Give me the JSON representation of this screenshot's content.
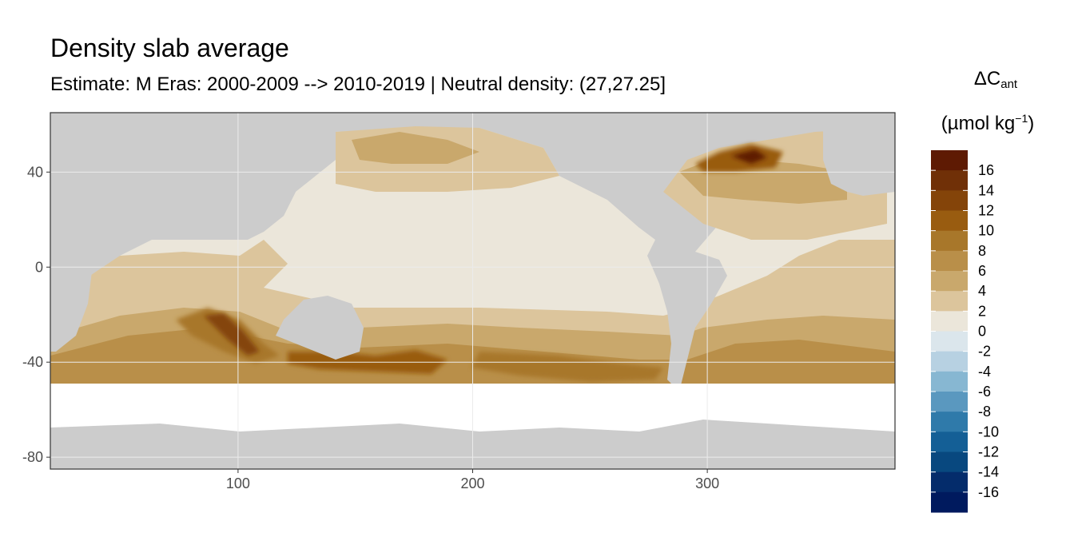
{
  "title": "Density slab average",
  "subtitle": "Estimate: M Eras: 2000-2009 --> 2010-2019 | Neutral density: (27,27.25]",
  "legend": {
    "title_line1": "ΔC",
    "title_line1_sub": "ant",
    "title_line2": "(µmol kg",
    "title_line2_sup": "−1",
    "title_line2_end": ")",
    "labels": [
      "16",
      "14",
      "12",
      "10",
      "8",
      "6",
      "4",
      "2",
      "0",
      "-2",
      "-4",
      "-6",
      "-8",
      "-10",
      "-12",
      "-14",
      "-16"
    ],
    "colors": [
      "#5e1a03",
      "#703007",
      "#844409",
      "#995c10",
      "#a8772a",
      "#b98f49",
      "#c9a86c",
      "#dcc59c",
      "#ebe6da",
      "#dbe6ec",
      "#b7d1e2",
      "#87b7d2",
      "#5a98bf",
      "#2f7aaa",
      "#145f96",
      "#08487f",
      "#042c6b",
      "#001a5e"
    ]
  },
  "chart_data": {
    "type": "heatmap",
    "title": "Density slab average",
    "subtitle": "Estimate: M Eras: 2000-2009 --> 2010-2019 | Neutral density: (27,27.25]",
    "x_ticks": [
      100,
      200,
      300
    ],
    "y_ticks": [
      40,
      0,
      -40,
      -80
    ],
    "xlim": [
      20,
      380
    ],
    "ylim": [
      -85,
      65
    ],
    "grid": true,
    "legend_position": "right",
    "value_breaks": [
      -16,
      -14,
      -12,
      -10,
      -8,
      -6,
      -4,
      -2,
      0,
      2,
      4,
      6,
      8,
      10,
      12,
      14,
      16
    ],
    "land_color": "#cccccc",
    "no_data_color": "#ffffff"
  },
  "colors": {
    "land": "#cccccc",
    "panel_border": "#333333",
    "grid": "#ebebeb",
    "axis_text": "#4d4d4d"
  }
}
